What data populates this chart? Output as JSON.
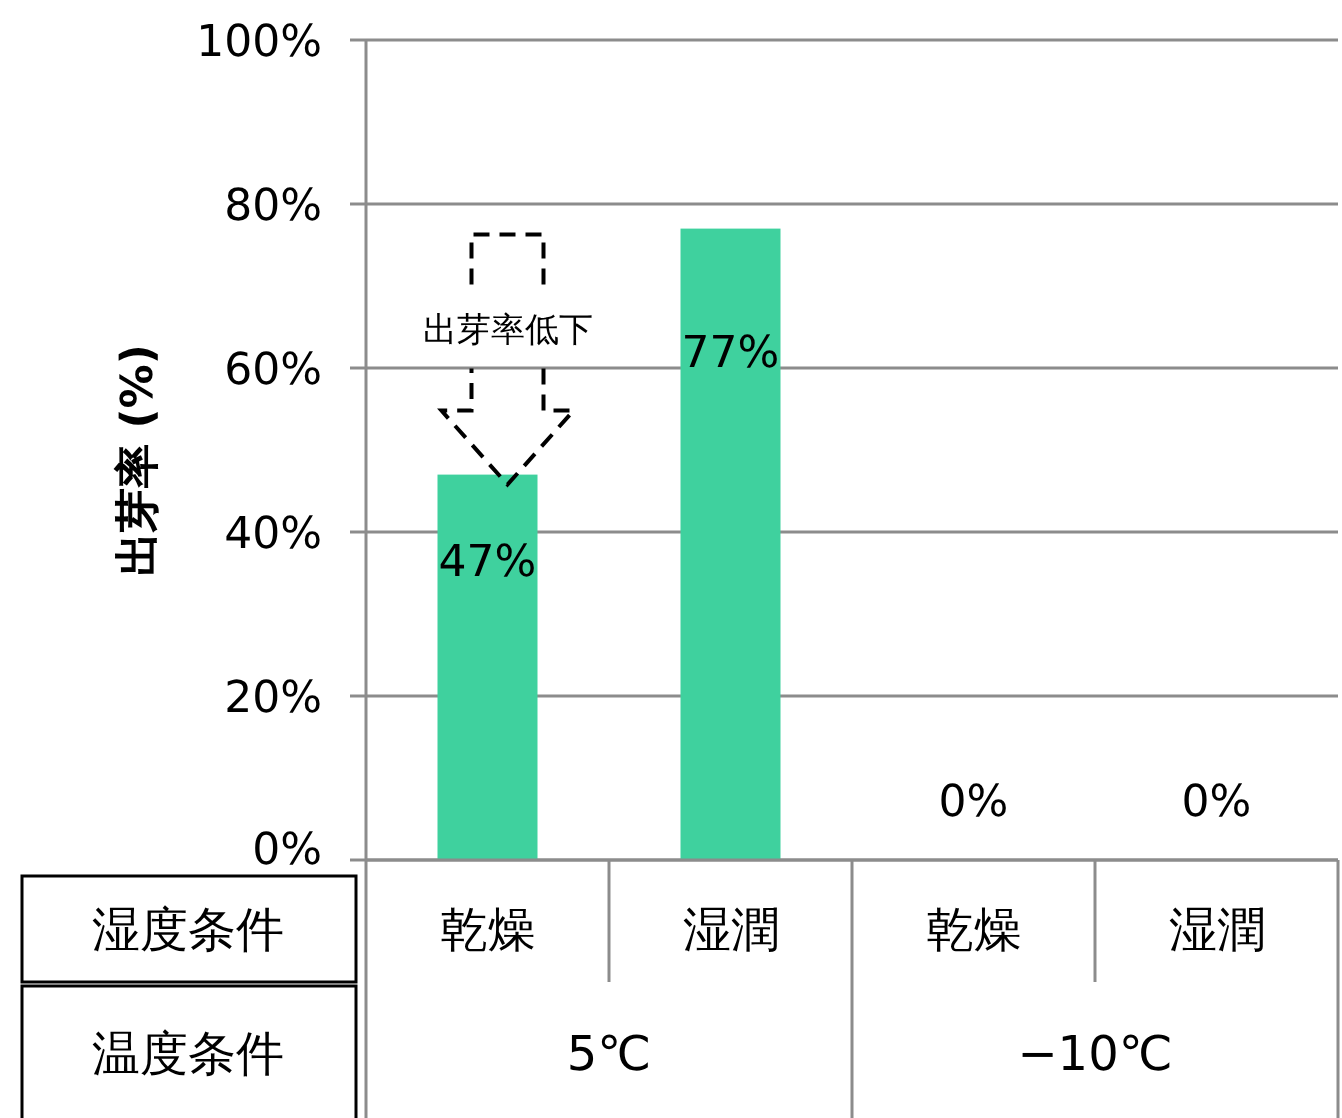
{
  "chart_data": {
    "type": "bar",
    "ylabel": "出芽率 (%)",
    "categories": [
      "乾燥",
      "湿潤",
      "乾燥",
      "湿潤"
    ],
    "values": [
      47,
      77,
      0,
      0
    ],
    "value_labels": [
      "47%",
      "77%",
      "0%",
      "0%"
    ],
    "color": "#3fd19e",
    "ylim": [
      0,
      100
    ],
    "yticks": [
      {
        "value": 0,
        "label": "0%"
      },
      {
        "value": 20,
        "label": "20%"
      },
      {
        "value": 40,
        "label": "40%"
      },
      {
        "value": 60,
        "label": "60%"
      },
      {
        "value": 80,
        "label": "80%"
      },
      {
        "value": 100,
        "label": "100%"
      }
    ],
    "grid": "y",
    "annotations": [
      "出芽率低下",
      "湿度条件",
      "温度条件",
      "5℃",
      "−10℃"
    ]
  }
}
